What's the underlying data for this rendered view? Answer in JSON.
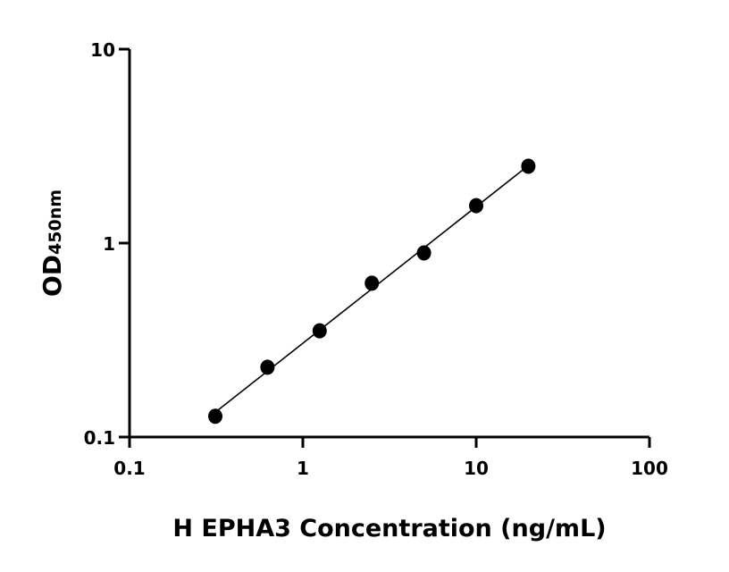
{
  "chart_data": {
    "type": "scatter",
    "title": "",
    "xlabel": "H EPHA3 Concentration (ng/mL)",
    "ylabel_main": "OD",
    "ylabel_sub": "450nm",
    "xscale": "log",
    "yscale": "log",
    "xlim": [
      0.1,
      100
    ],
    "ylim": [
      0.1,
      10
    ],
    "xticks": [
      "0.1",
      "1",
      "10",
      "100"
    ],
    "yticks": [
      "0.1",
      "1",
      "10"
    ],
    "grid": false,
    "legend": "none",
    "x": [
      0.3125,
      0.625,
      1.25,
      2.5,
      5,
      10,
      20
    ],
    "y": [
      0.128,
      0.229,
      0.353,
      0.621,
      0.89,
      1.56,
      2.49
    ],
    "fit_line": true,
    "marker_color": "#000000"
  }
}
